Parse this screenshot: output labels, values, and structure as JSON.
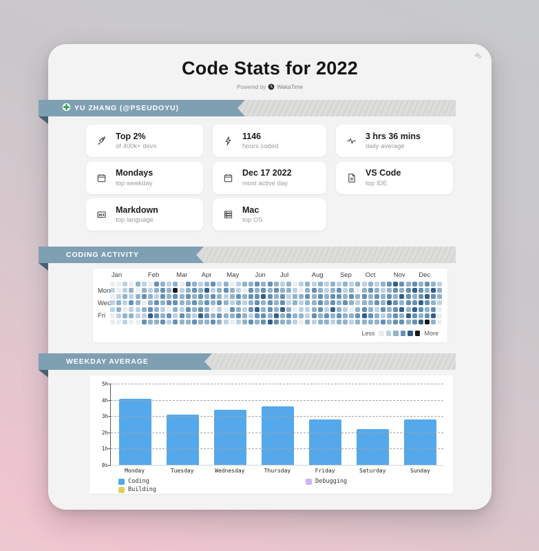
{
  "page": {
    "title": "Code Stats for 2022",
    "powered_by_label": "Powered by",
    "brand_name": "WakaTime",
    "corner_badge": "go"
  },
  "user_banner": {
    "label": "YU ZHANG (@PSEUDOYU)"
  },
  "section_banners": {
    "activity": "CODING ACTIVITY",
    "weekday": "WEEKDAY AVERAGE"
  },
  "stats": [
    {
      "icon": "rocket",
      "title": "Top 2%",
      "subtitle": "of 400k+ devs"
    },
    {
      "icon": "lightning",
      "title": "1146",
      "subtitle": "hours coded"
    },
    {
      "icon": "pulse",
      "title": "3 hrs 36 mins",
      "subtitle": "daily average"
    },
    {
      "icon": "calendar",
      "title": "Mondays",
      "subtitle": "top weekday"
    },
    {
      "icon": "calendar",
      "title": "Dec 17 2022",
      "subtitle": "most active day"
    },
    {
      "icon": "file-text",
      "title": "VS Code",
      "subtitle": "top IDE"
    },
    {
      "icon": "markdown",
      "title": "Markdown",
      "subtitle": "top language"
    },
    {
      "icon": "os-list",
      "title": "Mac",
      "subtitle": "top OS"
    }
  ],
  "colors": {
    "ribbon_blue": "#7f9fb3",
    "ribbon_fold": "#49606f",
    "bar_blue": "#55a8ea",
    "building_yellow": "#e0d05e",
    "debugging_purple": "#ccb5f2"
  },
  "chart_data": [
    {
      "type": "heatmap",
      "title": "CODING ACTIVITY",
      "months": [
        "Jan",
        "Feb",
        "Mar",
        "Apr",
        "May",
        "Jun",
        "Jul",
        "Aug",
        "Sep",
        "Oct",
        "Nov",
        "Dec"
      ],
      "month_label_weeks": [
        0.2,
        6,
        10.5,
        14.5,
        18.5,
        23,
        27,
        32,
        36.5,
        40.5,
        45,
        49
      ],
      "day_labels": [
        {
          "label": "Mon",
          "row": 1
        },
        {
          "label": "Wed",
          "row": 3
        },
        {
          "label": "Fri",
          "row": 5
        }
      ],
      "legend": {
        "less": "Less",
        "more": "More"
      },
      "palette": [
        "#ebeef1",
        "#bcd1e4",
        "#8fb2cd",
        "#6590b5",
        "#335f8a",
        "#15181c"
      ],
      "weeks": [
        "0101100",
        "0012210",
        "1121021",
        "0213120",
        "2022110",
        "1230213",
        "0122342",
        "3213232",
        "2332123",
        "1223031",
        "2533213",
        "0122132",
        "3232322",
        "2323213",
        "1232342",
        "2423232",
        "3132023",
        "1223132",
        "2312021",
        "0221320",
        "1132231",
        "2021122",
        "2332313",
        "3233432",
        "2342233",
        "3233324",
        "2322243",
        "1233422",
        "2211232",
        "0122021",
        "1021120",
        "2232112",
        "1322231",
        "2233322",
        "1122132",
        "2233421",
        "1332232",
        "2123122",
        "1232021",
        "2021232",
        "1232342",
        "2322232",
        "1233122",
        "2122313",
        "3234222",
        "4323333",
        "3242423",
        "2333242",
        "3423433",
        "2334324",
        "3243235",
        "2432342",
        "1221000"
      ]
    },
    {
      "type": "bar",
      "title": "WEEKDAY AVERAGE",
      "categories": [
        "Monday",
        "Tuesday",
        "Wednesday",
        "Thursday",
        "Friday",
        "Saturday",
        "Sunday"
      ],
      "values_hours": [
        4.07,
        3.1,
        3.37,
        3.62,
        2.8,
        2.22,
        2.8
      ],
      "ylim": [
        0,
        5
      ],
      "yticks_top_down": [
        "5h",
        "4h",
        "3h",
        "2h",
        "1h",
        "0s"
      ],
      "grid": "horizontal dashed",
      "bar_color": "#55a8ea",
      "legend": [
        {
          "label": "Coding",
          "color": "#55a8ea"
        },
        {
          "label": "Debugging",
          "color": "#ccb5f2"
        },
        {
          "label": "Building",
          "color": "#e0d05e"
        }
      ]
    }
  ]
}
